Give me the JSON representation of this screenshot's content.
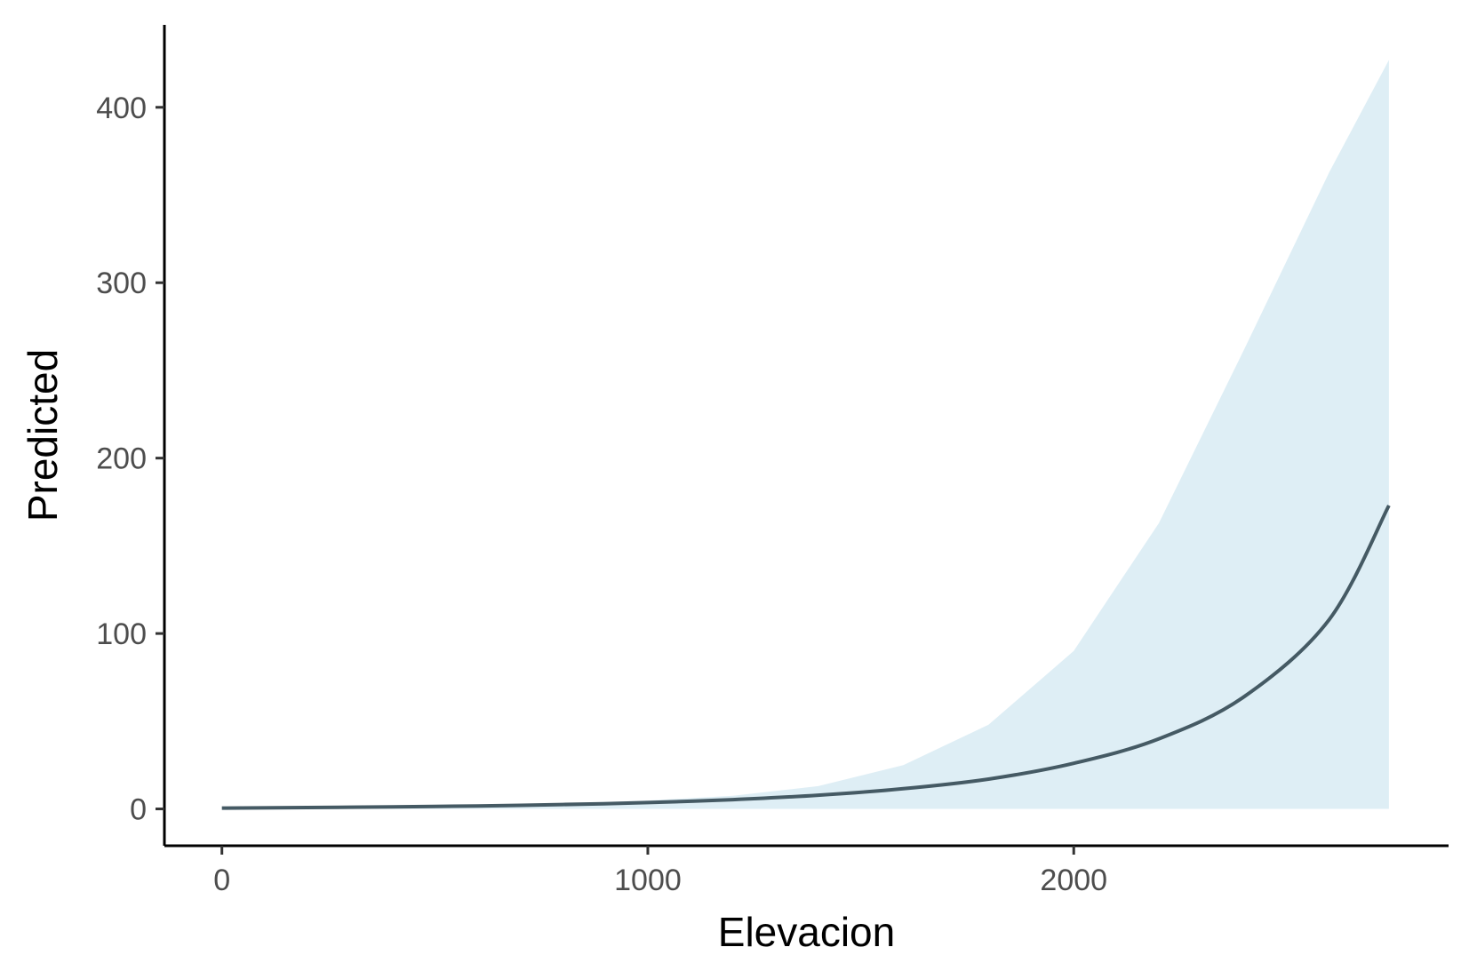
{
  "chart_data": {
    "type": "line",
    "title": "",
    "xlabel": "Elevacion",
    "ylabel": "Predicted",
    "xlim": [
      -135,
      2880
    ],
    "ylim": [
      -21,
      447
    ],
    "x_ticks": [
      0,
      1000,
      2000
    ],
    "y_ticks": [
      0,
      100,
      200,
      300,
      400
    ],
    "x_tick_labels": [
      "0",
      "1000",
      "2000"
    ],
    "y_tick_labels": [
      "0",
      "100",
      "200",
      "300",
      "400"
    ],
    "grid": false,
    "legend": "none",
    "series": [
      {
        "type": "line",
        "color": "#455a64",
        "x": [
          0,
          200,
          400,
          600,
          800,
          1000,
          1200,
          1400,
          1600,
          1800,
          2000,
          2200,
          2400,
          2600,
          2740
        ],
        "y": [
          0.5,
          0.8,
          1.2,
          1.7,
          2.5,
          3.6,
          5.3,
          7.8,
          11.5,
          17,
          26,
          40,
          64,
          108,
          173
        ]
      },
      {
        "type": "ribbon",
        "color": "#deeef5",
        "x": [
          0,
          200,
          400,
          600,
          800,
          1000,
          1200,
          1400,
          1600,
          1800,
          2000,
          2200,
          2400,
          2600,
          2740
        ],
        "lower": [
          0,
          0,
          0,
          0,
          0,
          0,
          0,
          0,
          0,
          0,
          0,
          0,
          0,
          0,
          0
        ],
        "upper": [
          0.6,
          1,
          1.5,
          2.2,
          3.2,
          4.8,
          7.5,
          13,
          25,
          48,
          90,
          163,
          262,
          363,
          427
        ]
      }
    ]
  }
}
